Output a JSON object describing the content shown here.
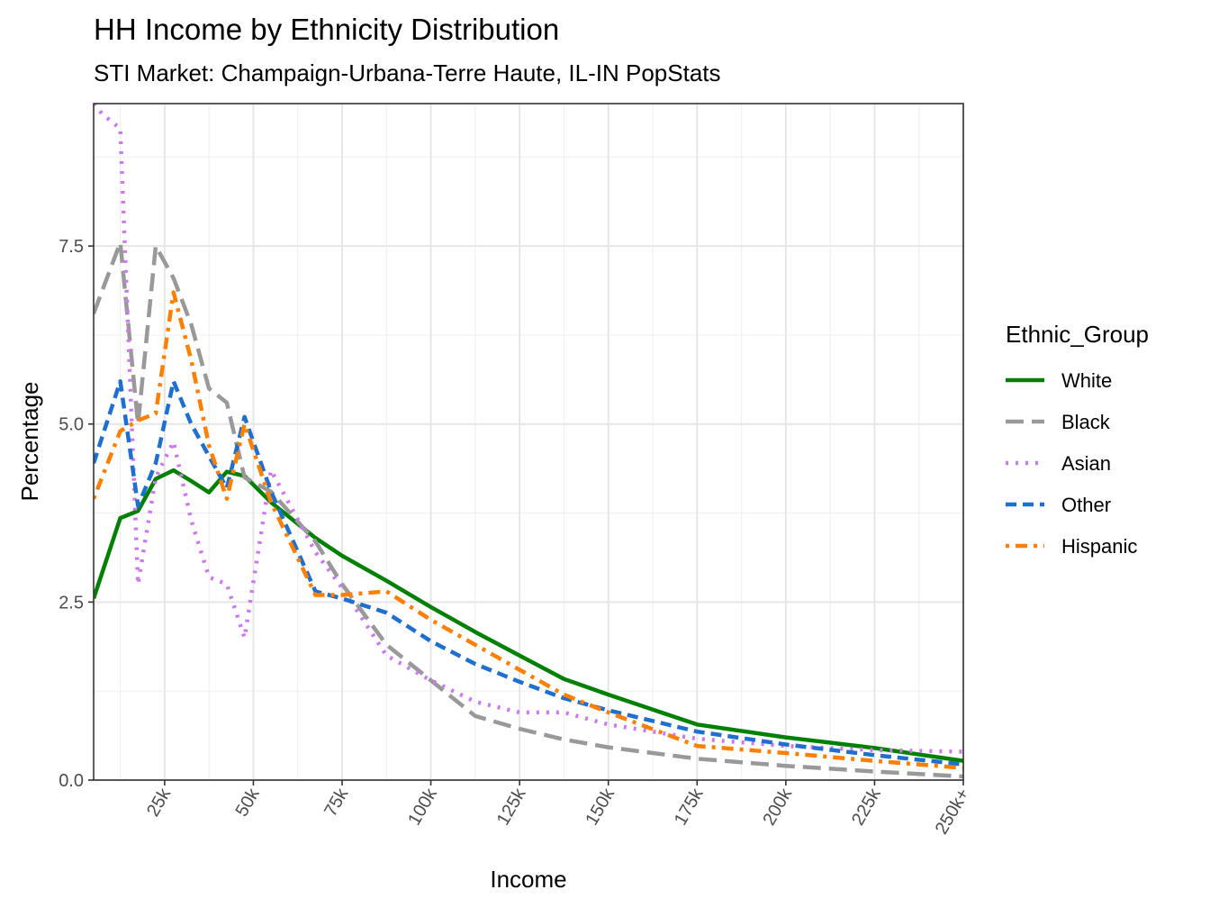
{
  "chart_data": {
    "type": "line",
    "title": "HH Income by Ethnicity Distribution",
    "subtitle": "STI Market: Champaign-Urbana-Terre Haute, IL-IN PopStats",
    "xlabel": "Income",
    "ylabel": "Percentage",
    "xlim": [
      5,
      250
    ],
    "ylim": [
      0,
      9.5
    ],
    "x_ticks": [
      25,
      50,
      75,
      100,
      125,
      150,
      175,
      200,
      225,
      250
    ],
    "x_tick_labels": [
      "25k",
      "50k",
      "75k",
      "100k",
      "125k",
      "150k",
      "175k",
      "200k",
      "225k",
      "250k+"
    ],
    "y_ticks": [
      0,
      2.5,
      5,
      7.5
    ],
    "y_tick_labels": [
      "0.0",
      "2.5",
      "5.0",
      "7.5"
    ],
    "grid": true,
    "legend_title": "Ethnic_Group",
    "legend_position": "right",
    "series": [
      {
        "name": "White",
        "color": "#008000",
        "dash": "solid",
        "points": [
          [
            5,
            2.55
          ],
          [
            12.5,
            3.68
          ],
          [
            17.5,
            3.78
          ],
          [
            22.5,
            4.23
          ],
          [
            27.5,
            4.35
          ],
          [
            32.5,
            4.2
          ],
          [
            37.5,
            4.04
          ],
          [
            42.5,
            4.33
          ],
          [
            47.5,
            4.27
          ],
          [
            55,
            3.9
          ],
          [
            67.5,
            3.4
          ],
          [
            75,
            3.15
          ],
          [
            87.5,
            2.8
          ],
          [
            100,
            2.43
          ],
          [
            112.5,
            2.08
          ],
          [
            125,
            1.75
          ],
          [
            137.5,
            1.42
          ],
          [
            150,
            1.2
          ],
          [
            175,
            0.78
          ],
          [
            200,
            0.6
          ],
          [
            225,
            0.45
          ],
          [
            250,
            0.27
          ]
        ]
      },
      {
        "name": "Black",
        "color": "#999999",
        "dash": "longdash",
        "points": [
          [
            5,
            6.55
          ],
          [
            12.5,
            7.55
          ],
          [
            17.5,
            5.0
          ],
          [
            22.5,
            7.5
          ],
          [
            27.5,
            7.05
          ],
          [
            32.5,
            6.4
          ],
          [
            37.5,
            5.5
          ],
          [
            42.5,
            5.3
          ],
          [
            47.5,
            4.25
          ],
          [
            55,
            4.05
          ],
          [
            67.5,
            3.35
          ],
          [
            75,
            2.75
          ],
          [
            87.5,
            1.9
          ],
          [
            100,
            1.4
          ],
          [
            112.5,
            0.9
          ],
          [
            125,
            0.72
          ],
          [
            137.5,
            0.57
          ],
          [
            150,
            0.46
          ],
          [
            175,
            0.3
          ],
          [
            200,
            0.2
          ],
          [
            225,
            0.12
          ],
          [
            250,
            0.05
          ]
        ]
      },
      {
        "name": "Asian",
        "color": "#CC79F0",
        "dash": "dotted",
        "points": [
          [
            5,
            9.5
          ],
          [
            7.5,
            9.35
          ],
          [
            12.5,
            9.15
          ],
          [
            17.5,
            2.75
          ],
          [
            22.5,
            4.25
          ],
          [
            27.5,
            4.75
          ],
          [
            32.5,
            3.65
          ],
          [
            37.5,
            2.85
          ],
          [
            42.5,
            2.75
          ],
          [
            47.5,
            2.0
          ],
          [
            55,
            4.35
          ],
          [
            67.5,
            3.2
          ],
          [
            75,
            2.7
          ],
          [
            87.5,
            1.75
          ],
          [
            100,
            1.4
          ],
          [
            112.5,
            1.1
          ],
          [
            125,
            0.95
          ],
          [
            137.5,
            0.95
          ],
          [
            150,
            0.78
          ],
          [
            175,
            0.58
          ],
          [
            200,
            0.48
          ],
          [
            225,
            0.42
          ],
          [
            250,
            0.4
          ]
        ]
      },
      {
        "name": "Other",
        "color": "#1F6FD0",
        "dash": "dashed",
        "points": [
          [
            5,
            4.45
          ],
          [
            12.5,
            5.6
          ],
          [
            17.5,
            3.85
          ],
          [
            22.5,
            4.45
          ],
          [
            27.5,
            5.6
          ],
          [
            32.5,
            5.0
          ],
          [
            37.5,
            4.55
          ],
          [
            42.5,
            4.1
          ],
          [
            47.5,
            5.1
          ],
          [
            55,
            4.05
          ],
          [
            67.5,
            2.65
          ],
          [
            75,
            2.55
          ],
          [
            87.5,
            2.35
          ],
          [
            100,
            1.95
          ],
          [
            112.5,
            1.63
          ],
          [
            125,
            1.38
          ],
          [
            137.5,
            1.15
          ],
          [
            150,
            0.98
          ],
          [
            175,
            0.68
          ],
          [
            200,
            0.5
          ],
          [
            225,
            0.35
          ],
          [
            250,
            0.22
          ]
        ]
      },
      {
        "name": "Hispanic",
        "color": "#FF7F00",
        "dash": "dotdash",
        "points": [
          [
            5,
            3.95
          ],
          [
            12.5,
            4.9
          ],
          [
            17.5,
            5.05
          ],
          [
            22.5,
            5.15
          ],
          [
            27.5,
            6.85
          ],
          [
            32.5,
            5.9
          ],
          [
            37.5,
            4.7
          ],
          [
            42.5,
            3.95
          ],
          [
            47.5,
            5.0
          ],
          [
            55,
            3.9
          ],
          [
            67.5,
            2.6
          ],
          [
            75,
            2.6
          ],
          [
            87.5,
            2.65
          ],
          [
            100,
            2.25
          ],
          [
            112.5,
            1.9
          ],
          [
            125,
            1.55
          ],
          [
            137.5,
            1.2
          ],
          [
            150,
            0.95
          ],
          [
            175,
            0.48
          ],
          [
            200,
            0.38
          ],
          [
            225,
            0.27
          ],
          [
            250,
            0.17
          ]
        ]
      }
    ]
  }
}
